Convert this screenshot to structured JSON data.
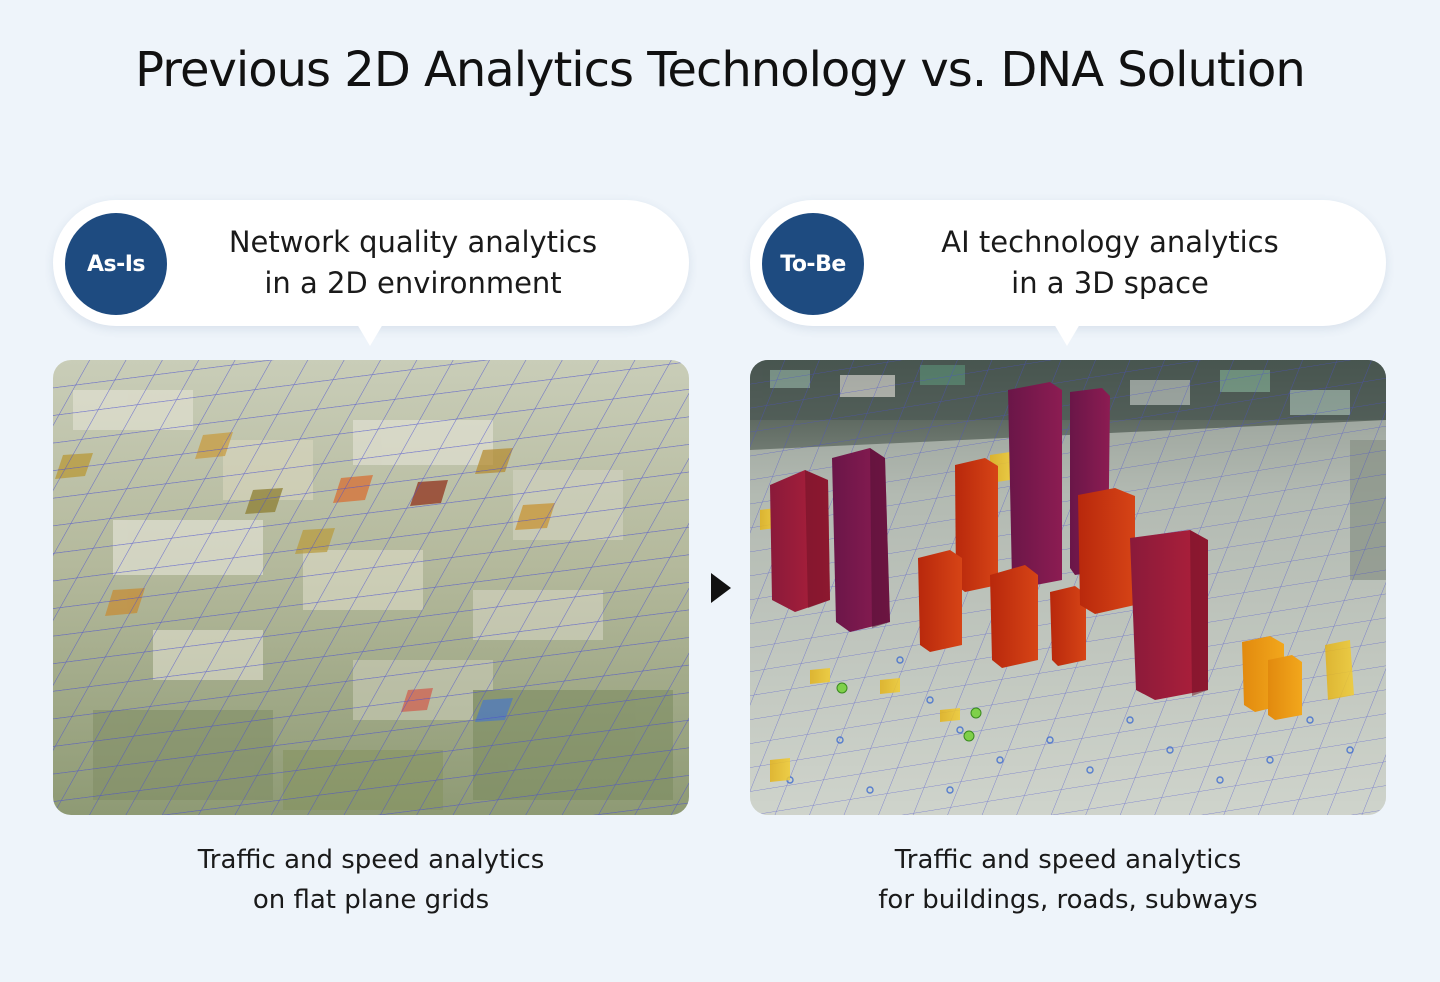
{
  "title": "Previous 2D Analytics Technology vs. DNA Solution",
  "panels": [
    {
      "badge": "As-Is",
      "heading_line1": "Network quality analytics",
      "heading_line2": "in a 2D environment",
      "caption_line1": "Traffic and speed analytics",
      "caption_line2": "on flat plane grids"
    },
    {
      "badge": "To-Be",
      "heading_line1": "AI technology analytics",
      "heading_line2": "in a 3D space",
      "caption_line1": "Traffic and speed analytics",
      "caption_line2": "for buildings, roads, subways"
    }
  ],
  "icons": {
    "arrow": "triangle-right-icon"
  },
  "colors": {
    "badge": "#1e4b80",
    "background": "#eef4fa",
    "grid": "#4a4fd0"
  }
}
